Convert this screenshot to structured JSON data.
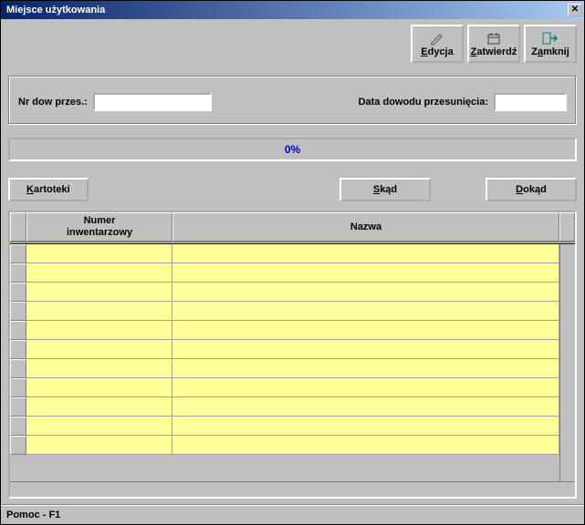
{
  "window": {
    "title": "Miejsce użytkowania"
  },
  "toolbar": {
    "edit": {
      "label": "Edycja",
      "accel": "E"
    },
    "confirm": {
      "label": "Zatwierdź",
      "accel": "Z"
    },
    "close": {
      "label": "Zamknij",
      "accel": "a"
    }
  },
  "fields": {
    "doc_number_label": "Nr dow przes.:",
    "doc_number_value": "",
    "doc_date_label": "Data dowodu przesunięcia:",
    "doc_date_value": ""
  },
  "progress": {
    "text": "0%",
    "color": "#0000cc"
  },
  "buttons": {
    "kartoteki": {
      "label": "Kartoteki",
      "accel": "K"
    },
    "skad": {
      "label": "Skąd",
      "accel": "S"
    },
    "dokad": {
      "label": "Dokąd",
      "accel": "D"
    }
  },
  "grid": {
    "columns": {
      "inventory": {
        "line1": "Numer",
        "line2": "inwentarzowy"
      },
      "name": "Nazwa"
    },
    "row_count": 11,
    "cell_bg": "#ffff99"
  },
  "status": {
    "help": "Pomoc - F1"
  }
}
